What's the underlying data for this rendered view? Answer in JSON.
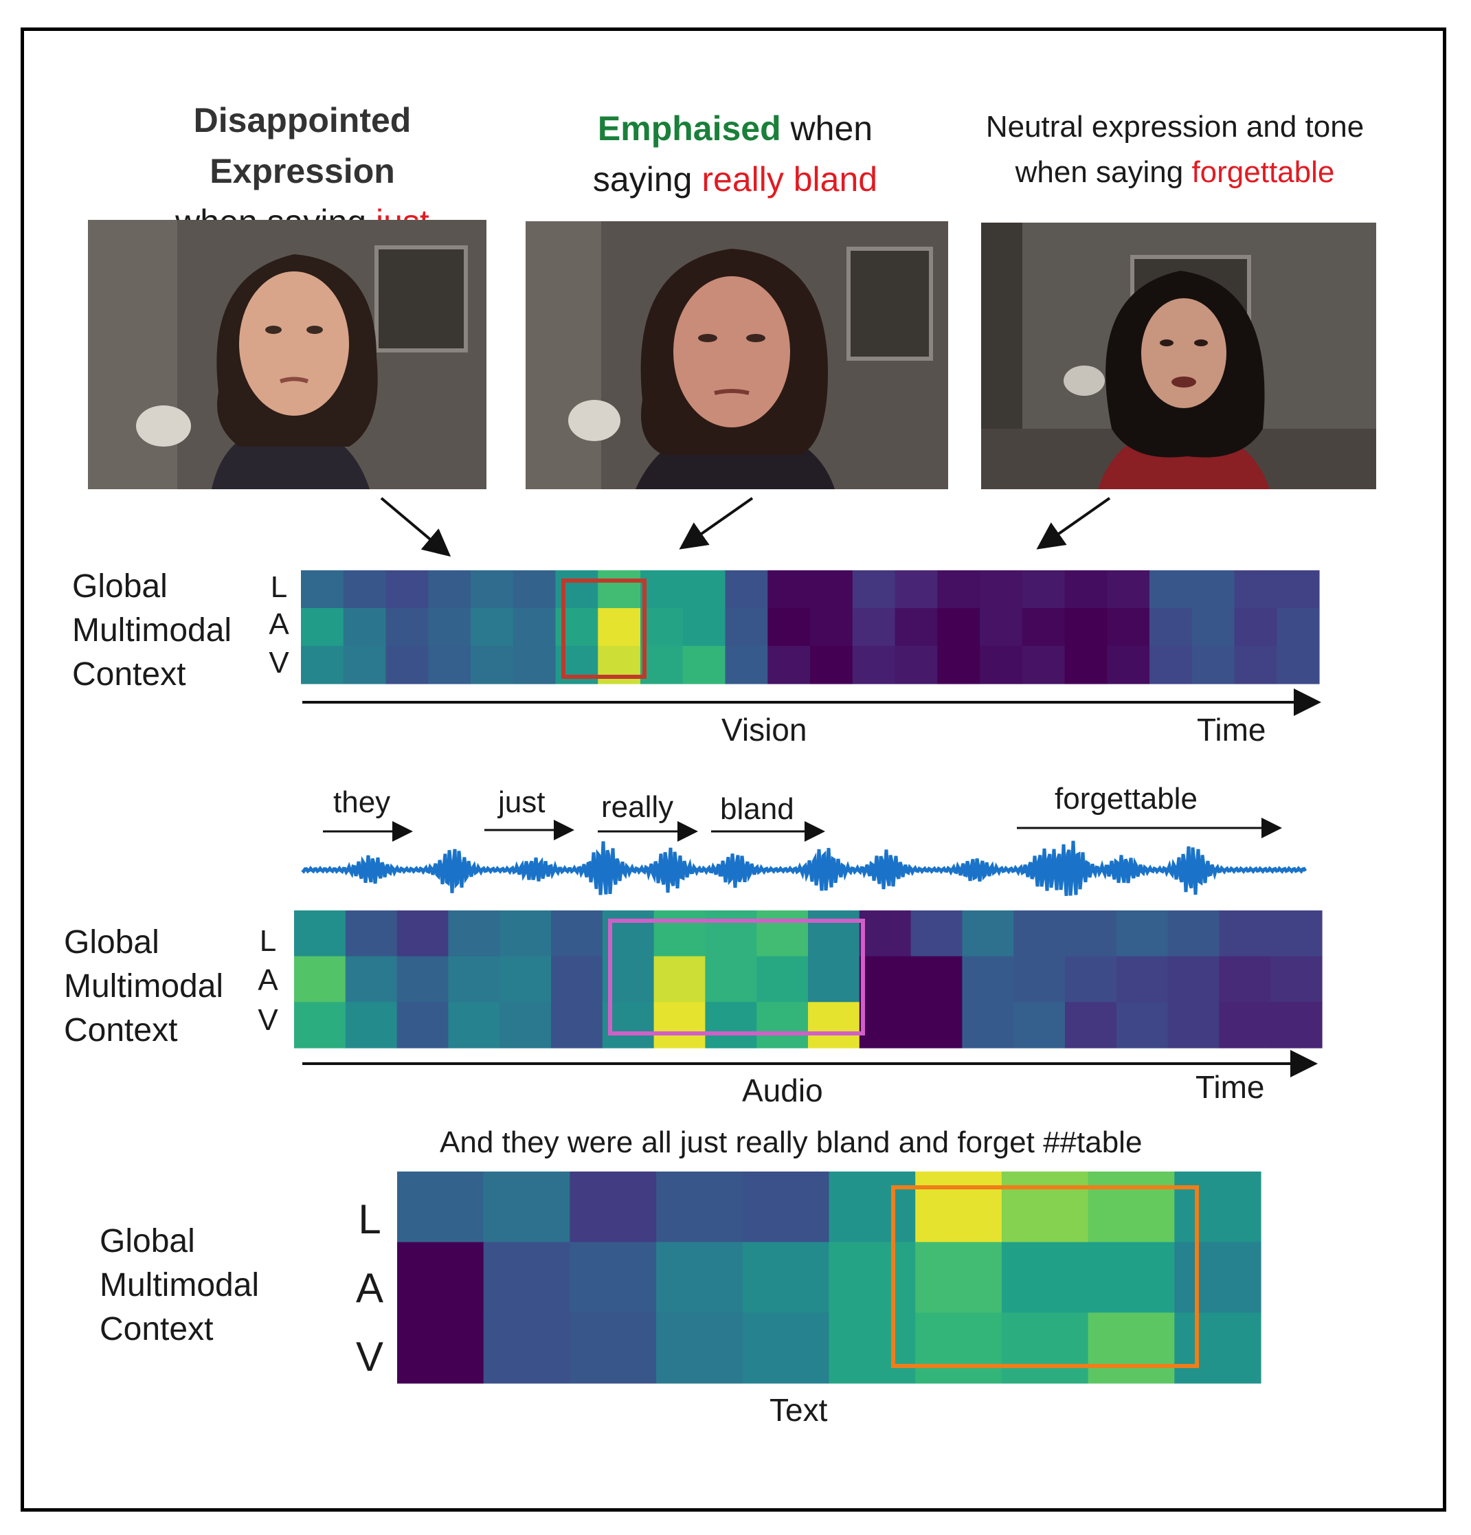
{
  "captions": {
    "left": {
      "line1": "Disappointed Expression",
      "line2_prefix": "when saying ",
      "line2_word": "just"
    },
    "middle": {
      "line1_em": "Emphaised",
      "line1_rest": " when",
      "line2_prefix": "saying ",
      "line2_word": "really bland"
    },
    "right": {
      "line1": "Neutral expression and tone",
      "line2_prefix": "when saying ",
      "line2_word": "forgettable"
    }
  },
  "context_label": {
    "line1": "Global",
    "line2": "Multimodal",
    "line3": "Context"
  },
  "row_labels": [
    "L",
    "A",
    "V"
  ],
  "vision": {
    "axis_name": "Vision",
    "time_label": "Time",
    "grid": [
      [
        0.38,
        0.3,
        0.25,
        0.33,
        0.4,
        0.36,
        0.58,
        0.78,
        0.62,
        0.62,
        0.28,
        0.02,
        0.02,
        0.18,
        0.12,
        0.05,
        0.06,
        0.08,
        0.04,
        0.06,
        0.3,
        0.3,
        0.22,
        0.22
      ],
      [
        0.62,
        0.44,
        0.3,
        0.36,
        0.46,
        0.4,
        0.66,
        0.98,
        0.66,
        0.62,
        0.3,
        0.0,
        0.02,
        0.14,
        0.05,
        0.0,
        0.06,
        0.02,
        0.0,
        0.02,
        0.26,
        0.3,
        0.2,
        0.26
      ],
      [
        0.52,
        0.46,
        0.28,
        0.34,
        0.42,
        0.4,
        0.6,
        0.96,
        0.68,
        0.74,
        0.32,
        0.06,
        0.0,
        0.1,
        0.08,
        0.0,
        0.04,
        0.06,
        0.0,
        0.04,
        0.24,
        0.28,
        0.22,
        0.26
      ]
    ]
  },
  "audio": {
    "axis_name": "Audio",
    "time_label": "Time",
    "words": [
      "they",
      "just",
      "really",
      "bland",
      "forgettable"
    ],
    "grid": [
      [
        0.56,
        0.3,
        0.2,
        0.4,
        0.44,
        0.32,
        0.52,
        0.74,
        0.72,
        0.78,
        0.52,
        0.08,
        0.24,
        0.42,
        0.3,
        0.3,
        0.34,
        0.3,
        0.22,
        0.22
      ],
      [
        0.82,
        0.46,
        0.36,
        0.46,
        0.48,
        0.28,
        0.52,
        0.96,
        0.72,
        0.68,
        0.52,
        0.0,
        0.0,
        0.32,
        0.3,
        0.26,
        0.22,
        0.2,
        0.14,
        0.16
      ],
      [
        0.7,
        0.54,
        0.32,
        0.5,
        0.46,
        0.28,
        0.54,
        0.98,
        0.62,
        0.74,
        0.98,
        0.0,
        0.0,
        0.32,
        0.34,
        0.18,
        0.24,
        0.2,
        0.12,
        0.12
      ]
    ]
  },
  "text": {
    "axis_name": "Text",
    "sentence": "And they were all just really bland and forget ##table",
    "grid": [
      [
        0.36,
        0.42,
        0.2,
        0.3,
        0.28,
        0.58,
        0.98,
        0.9,
        0.86,
        0.58
      ],
      [
        0.0,
        0.28,
        0.32,
        0.48,
        0.54,
        0.66,
        0.78,
        0.64,
        0.64,
        0.5
      ],
      [
        0.0,
        0.28,
        0.3,
        0.46,
        0.5,
        0.66,
        0.74,
        0.7,
        0.84,
        0.58
      ]
    ]
  },
  "colors": {
    "highlight_word": "#e11b22",
    "emphasis": "#1a7f3a",
    "vision_box": "#c0392b",
    "audio_box": "#d060c8",
    "text_box": "#f07d1a",
    "waveform": "#1a73c8"
  }
}
